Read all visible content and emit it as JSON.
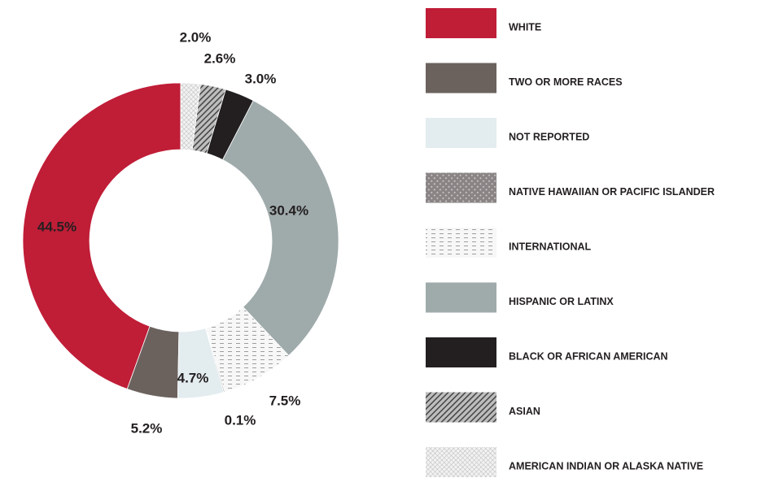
{
  "chart_data": {
    "type": "donut",
    "categories": [
      "WHITE",
      "TWO OR MORE RACES",
      "NOT REPORTED",
      "NATIVE HAWAIIAN OR PACIFIC ISLANDER",
      "INTERNATIONAL",
      "HISPANIC OR LATINX",
      "BLACK OR AFRICAN AMERICAN",
      "ASIAN",
      "AMERICAN INDIAN OR ALASKA NATIVE"
    ],
    "values": [
      44.5,
      5.2,
      4.7,
      0.1,
      7.5,
      30.4,
      3.0,
      2.6,
      2.0
    ],
    "value_labels": [
      "44.5%",
      "5.2%",
      "4.7%",
      "0.1%",
      "7.5%",
      "30.4%",
      "3.0%",
      "2.6%",
      "2.0%"
    ],
    "colors": [
      "#c01d37",
      "#6b625e",
      "#e3ecef",
      "#7d7778",
      "#f2f2f2",
      "#9faaab",
      "#231f20",
      "#555",
      "#e6e6e6"
    ],
    "patterns": [
      null,
      null,
      null,
      "dots",
      "dashes",
      null,
      null,
      "hatch",
      "cross"
    ],
    "legend": "right"
  }
}
